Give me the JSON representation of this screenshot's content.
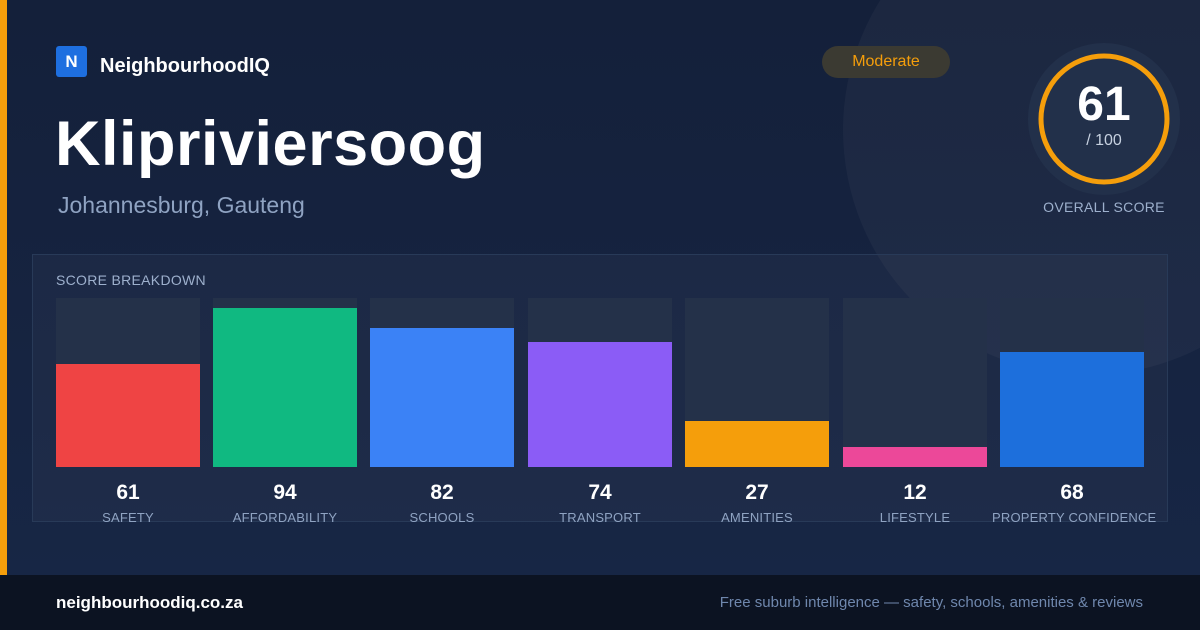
{
  "brand": {
    "logo_letter": "N",
    "name": "NeighbourhoodIQ",
    "accent_color": "#f59e0b",
    "logo_color": "#1e6fe0"
  },
  "suburb": {
    "name": "Klipriviersoog",
    "location": "Johannesburg, Gauteng"
  },
  "rating": {
    "badge": "Moderate",
    "score": "61",
    "max": "/ 100",
    "caption": "OVERALL SCORE",
    "fraction": 0.61
  },
  "breakdown": {
    "title": "SCORE BREAKDOWN",
    "items": [
      {
        "label": "SAFETY",
        "value": "61",
        "score": 61,
        "color": "#ef4444"
      },
      {
        "label": "AFFORDABILITY",
        "value": "94",
        "score": 94,
        "color": "#10b981"
      },
      {
        "label": "SCHOOLS",
        "value": "82",
        "score": 82,
        "color": "#3b82f6"
      },
      {
        "label": "TRANSPORT",
        "value": "74",
        "score": 74,
        "color": "#8b5cf6"
      },
      {
        "label": "AMENITIES",
        "value": "27",
        "score": 27,
        "color": "#f59e0b"
      },
      {
        "label": "LIFESTYLE",
        "value": "12",
        "score": 12,
        "color": "#ec4899"
      },
      {
        "label": "PROPERTY CONFIDENCE",
        "value": "68",
        "score": 68,
        "color": "#1d6fdc"
      }
    ]
  },
  "footer": {
    "domain": "neighbourhoodiq.co.za",
    "tagline": "Free suburb intelligence — safety, schools, amenities & reviews"
  }
}
